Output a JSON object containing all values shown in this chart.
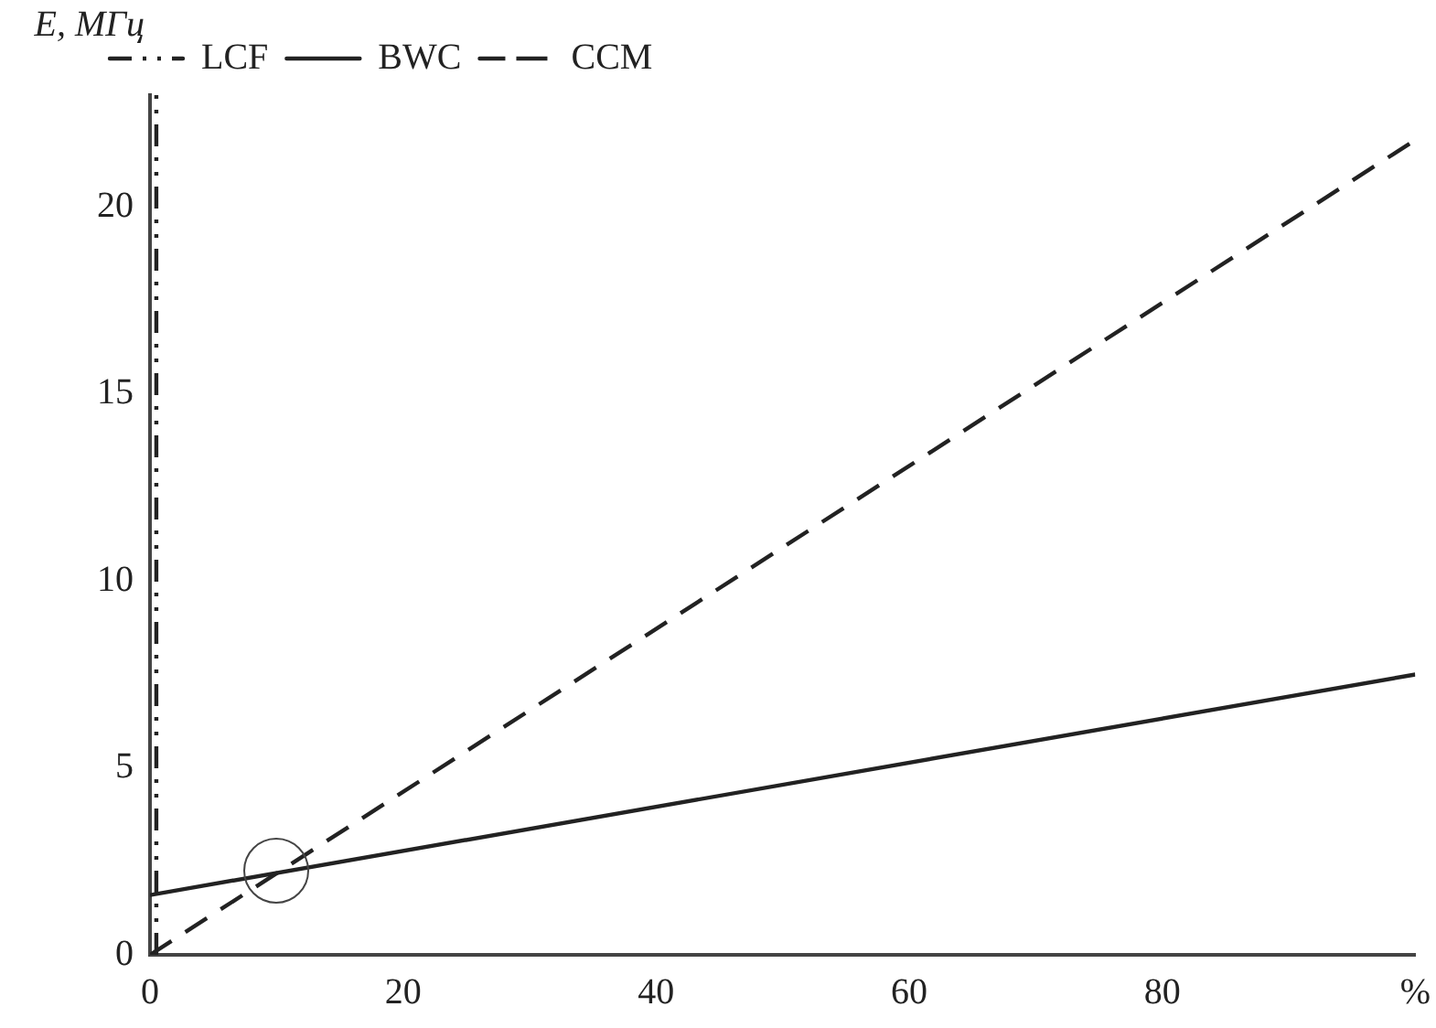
{
  "chart_data": {
    "type": "line",
    "ylabel": "E, МГц",
    "xlim": [
      0,
      100
    ],
    "ylim": [
      0,
      23
    ],
    "xticks": [
      0,
      20,
      40,
      60,
      80,
      {
        "value": 100,
        "label": "%"
      }
    ],
    "yticks": [
      0,
      5,
      10,
      15,
      20
    ],
    "grid": false,
    "legend": "top left",
    "marker": "none",
    "series": [
      {
        "name": "LCF",
        "color": "#222222",
        "line_style": "dotted",
        "x": [
          0.5,
          0.5
        ],
        "values": [
          0,
          23
        ]
      },
      {
        "name": "BWC",
        "color": "#222222",
        "line_style": "solid",
        "x": [
          0,
          100
        ],
        "values": [
          1.6,
          7.5
        ]
      },
      {
        "name": "CCM",
        "color": "#222222",
        "line_style": "dashed",
        "x": [
          0,
          100
        ],
        "values": [
          0,
          21.8
        ]
      }
    ]
  }
}
